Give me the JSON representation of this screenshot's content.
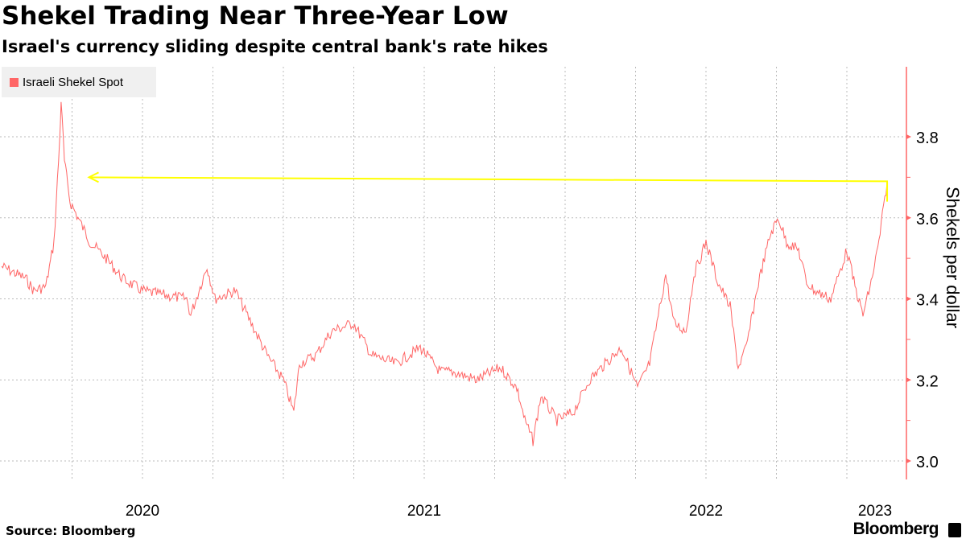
{
  "title": "Shekel Trading Near Three-Year Low",
  "subtitle": "Israel's currency sliding despite central bank's rate hikes",
  "source": "Source: Bloomberg",
  "brand": "Bloomberg",
  "chart_data": {
    "type": "line",
    "title": "Shekel Trading Near Three-Year Low",
    "ylabel": "Shekels per dollar",
    "ylim": [
      2.95,
      3.95
    ],
    "yticks": [
      "3.0",
      "3.2",
      "3.4",
      "3.6",
      "3.8"
    ],
    "xticks": [
      {
        "label": "2020",
        "at": 2020.5
      },
      {
        "label": "2021",
        "at": 2021.5
      },
      {
        "label": "2022",
        "at": 2022.5
      },
      {
        "label": "2023",
        "at": 2023.1
      }
    ],
    "legend": {
      "position": "top-left",
      "entries": [
        "Israeli Shekel Spot"
      ]
    },
    "series": [
      {
        "name": "Israeli Shekel Spot",
        "color": "#ff6666",
        "points": [
          [
            2020.0,
            3.48
          ],
          [
            2020.086,
            3.45
          ],
          [
            2020.114,
            3.42
          ],
          [
            2020.157,
            3.43
          ],
          [
            2020.186,
            3.54
          ],
          [
            2020.206,
            3.79
          ],
          [
            2020.211,
            3.89
          ],
          [
            2020.223,
            3.74
          ],
          [
            2020.243,
            3.64
          ],
          [
            2020.271,
            3.6
          ],
          [
            2020.314,
            3.54
          ],
          [
            2020.371,
            3.5
          ],
          [
            2020.429,
            3.45
          ],
          [
            2020.5,
            3.42
          ],
          [
            2020.571,
            3.41
          ],
          [
            2020.657,
            3.4
          ],
          [
            2020.671,
            3.36
          ],
          [
            2020.729,
            3.48
          ],
          [
            2020.757,
            3.4
          ],
          [
            2020.829,
            3.42
          ],
          [
            2020.886,
            3.34
          ],
          [
            2020.943,
            3.26
          ],
          [
            2021.0,
            3.2
          ],
          [
            2021.037,
            3.12
          ],
          [
            2021.057,
            3.24
          ],
          [
            2021.114,
            3.26
          ],
          [
            2021.171,
            3.32
          ],
          [
            2021.249,
            3.34
          ],
          [
            2021.314,
            3.26
          ],
          [
            2021.4,
            3.24
          ],
          [
            2021.486,
            3.28
          ],
          [
            2021.557,
            3.22
          ],
          [
            2021.6,
            3.22
          ],
          [
            2021.686,
            3.2
          ],
          [
            2021.771,
            3.23
          ],
          [
            2021.829,
            3.18
          ],
          [
            2021.857,
            3.1
          ],
          [
            2021.886,
            3.05
          ],
          [
            2021.914,
            3.16
          ],
          [
            2021.971,
            3.1
          ],
          [
            2022.029,
            3.12
          ],
          [
            2022.086,
            3.2
          ],
          [
            2022.171,
            3.26
          ],
          [
            2022.2,
            3.28
          ],
          [
            2022.257,
            3.18
          ],
          [
            2022.3,
            3.24
          ],
          [
            2022.357,
            3.46
          ],
          [
            2022.386,
            3.34
          ],
          [
            2022.429,
            3.32
          ],
          [
            2022.457,
            3.46
          ],
          [
            2022.5,
            3.54
          ],
          [
            2022.543,
            3.44
          ],
          [
            2022.586,
            3.38
          ],
          [
            2022.614,
            3.23
          ],
          [
            2022.643,
            3.28
          ],
          [
            2022.686,
            3.44
          ],
          [
            2022.729,
            3.56
          ],
          [
            2022.757,
            3.6
          ],
          [
            2022.786,
            3.54
          ],
          [
            2022.829,
            3.52
          ],
          [
            2022.857,
            3.44
          ],
          [
            2022.886,
            3.42
          ],
          [
            2022.943,
            3.4
          ],
          [
            2023.0,
            3.52
          ],
          [
            2023.029,
            3.43
          ],
          [
            2023.057,
            3.36
          ],
          [
            2023.086,
            3.44
          ],
          [
            2023.114,
            3.54
          ],
          [
            2023.143,
            3.69
          ]
        ]
      }
    ],
    "annotation": {
      "type": "arrow",
      "from": [
        2023.143,
        3.69
      ],
      "to": [
        2020.31,
        3.7
      ],
      "color": "#ffff00"
    }
  }
}
